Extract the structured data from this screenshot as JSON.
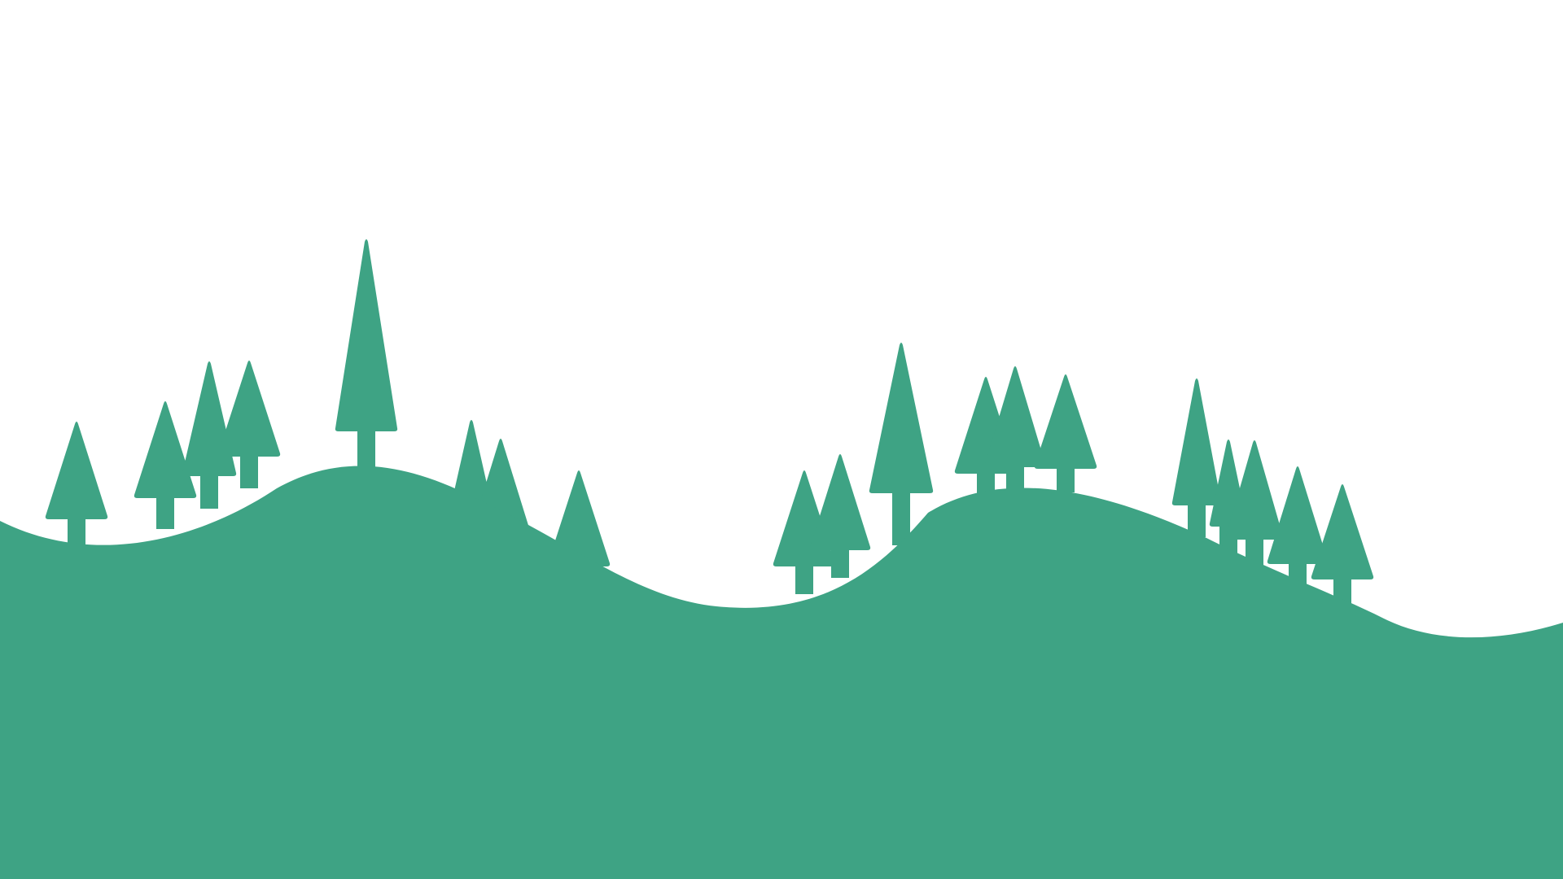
{
  "scene": {
    "background_color": "#ffffff",
    "fill_color": "#3ea384",
    "elements": [
      "rolling-hills",
      "pine-tree-silhouettes"
    ]
  }
}
